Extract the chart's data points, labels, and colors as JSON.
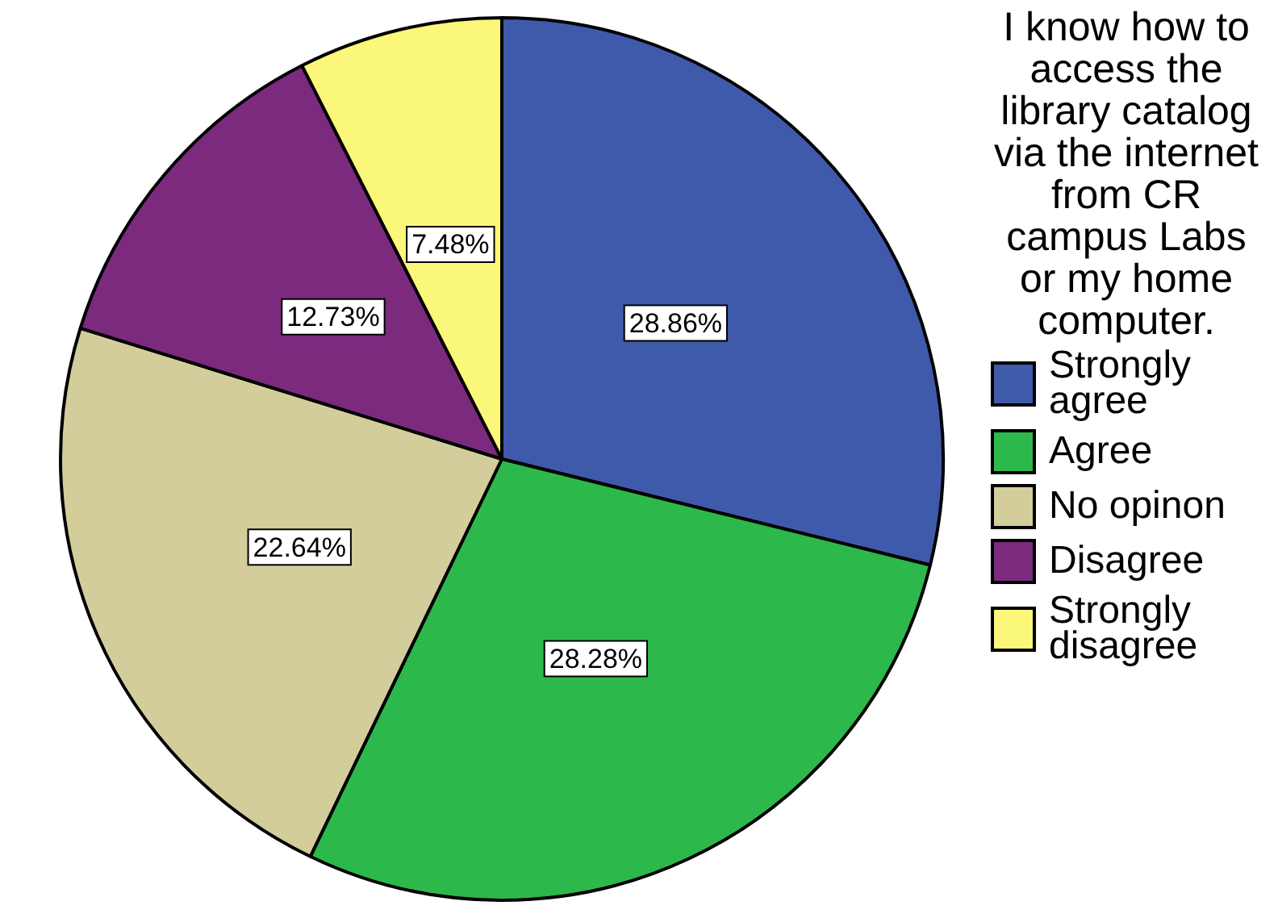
{
  "chart_data": {
    "type": "pie",
    "legend_title": "I know how to access the library catalog via the internet from CR campus Labs or my home computer.",
    "categories": [
      "Strongly agree",
      "Agree",
      "No opinon",
      "Disagree",
      "Strongly disagree"
    ],
    "values": [
      28.86,
      28.28,
      22.64,
      12.73,
      7.48
    ],
    "colors": [
      "#3f5aab",
      "#2db84b",
      "#d3cd9b",
      "#7b2a7e",
      "#fbf77a"
    ],
    "value_labels": [
      "28.86%",
      "28.28%",
      "22.64%",
      "12.73%",
      "7.48%"
    ],
    "legend": "right"
  }
}
